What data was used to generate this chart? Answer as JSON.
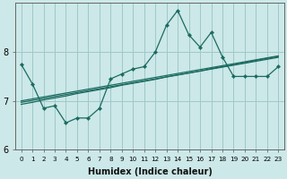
{
  "xlabel": "Humidex (Indice chaleur)",
  "ylabel": "",
  "bg_color": "#cce8e8",
  "line_color": "#1a6b60",
  "grid_color": "#a0c8c8",
  "x_data": [
    0,
    1,
    2,
    3,
    4,
    5,
    6,
    7,
    8,
    9,
    10,
    11,
    12,
    13,
    14,
    15,
    16,
    17,
    18,
    19,
    20,
    21,
    22,
    23
  ],
  "y_main": [
    7.75,
    7.35,
    6.85,
    6.9,
    6.55,
    6.65,
    6.65,
    6.85,
    7.45,
    7.55,
    7.65,
    7.7,
    8.0,
    8.55,
    8.85,
    8.35,
    8.1,
    8.4,
    7.9,
    7.5,
    7.5,
    7.5,
    7.5,
    7.7
  ],
  "y_reg_upper": [
    7.0,
    7.04,
    7.08,
    7.12,
    7.16,
    7.2,
    7.24,
    7.28,
    7.32,
    7.36,
    7.4,
    7.44,
    7.48,
    7.52,
    7.56,
    7.6,
    7.64,
    7.68,
    7.72,
    7.76,
    7.8,
    7.84,
    7.88,
    7.92
  ],
  "y_reg_mid": [
    6.97,
    7.01,
    7.05,
    7.09,
    7.13,
    7.17,
    7.21,
    7.25,
    7.29,
    7.33,
    7.37,
    7.41,
    7.45,
    7.49,
    7.53,
    7.57,
    7.61,
    7.65,
    7.69,
    7.73,
    7.77,
    7.81,
    7.85,
    7.89
  ],
  "y_reg_lower": [
    6.93,
    6.97,
    7.02,
    7.06,
    7.1,
    7.15,
    7.19,
    7.23,
    7.27,
    7.32,
    7.36,
    7.4,
    7.44,
    7.49,
    7.53,
    7.57,
    7.61,
    7.66,
    7.7,
    7.74,
    7.78,
    7.83,
    7.87,
    7.91
  ],
  "ylim": [
    6.0,
    9.0
  ],
  "xlim": [
    -0.5,
    23.5
  ],
  "yticks": [
    6,
    7,
    8
  ],
  "xticks": [
    0,
    1,
    2,
    3,
    4,
    5,
    6,
    7,
    8,
    9,
    10,
    11,
    12,
    13,
    14,
    15,
    16,
    17,
    18,
    19,
    20,
    21,
    22,
    23
  ],
  "xlabel_fontsize": 7,
  "tick_fontsize_x": 5.2,
  "tick_fontsize_y": 7
}
